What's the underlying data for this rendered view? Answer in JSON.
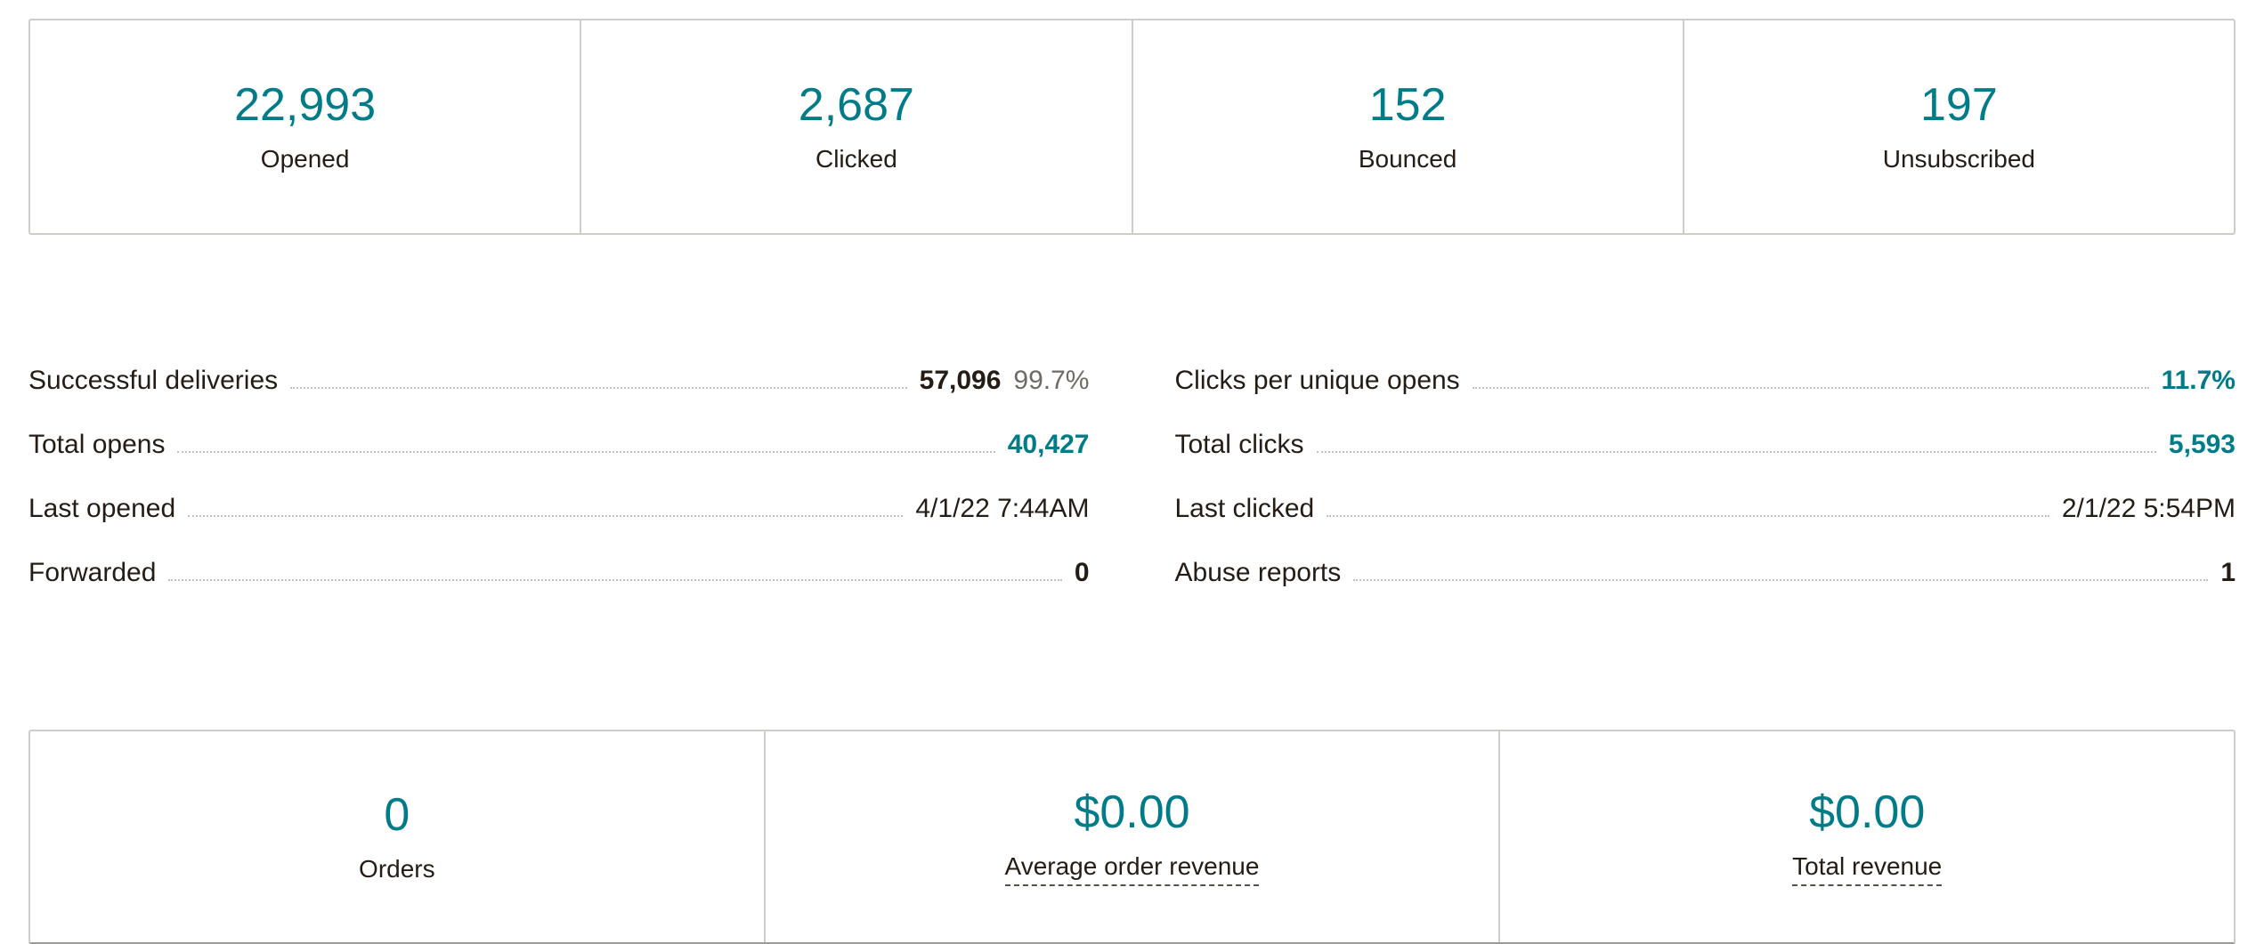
{
  "colors": {
    "teal": "#007c89",
    "dark_text": "#241c15",
    "muted_text": "#6f6b64",
    "border": "#cfcdc9"
  },
  "top_stats": [
    {
      "value": "22,993",
      "label": "Opened"
    },
    {
      "value": "2,687",
      "label": "Clicked"
    },
    {
      "value": "152",
      "label": "Bounced"
    },
    {
      "value": "197",
      "label": "Unsubscribed"
    }
  ],
  "details": {
    "left": [
      {
        "label": "Successful deliveries",
        "value": "57,096",
        "secondary": "99.7%"
      },
      {
        "label": "Total opens",
        "value": "40,427"
      },
      {
        "label": "Last opened",
        "value": "4/1/22 7:44AM"
      },
      {
        "label": "Forwarded",
        "value": "0"
      }
    ],
    "right": [
      {
        "label": "Clicks per unique opens",
        "value": "11.7%"
      },
      {
        "label": "Total clicks",
        "value": "5,593"
      },
      {
        "label": "Last clicked",
        "value": "2/1/22 5:54PM"
      },
      {
        "label": "Abuse reports",
        "value": "1"
      }
    ]
  },
  "ecommerce": [
    {
      "value": "0",
      "label": "Orders"
    },
    {
      "value": "$0.00",
      "label": "Average order revenue"
    },
    {
      "value": "$0.00",
      "label": "Total revenue"
    }
  ]
}
